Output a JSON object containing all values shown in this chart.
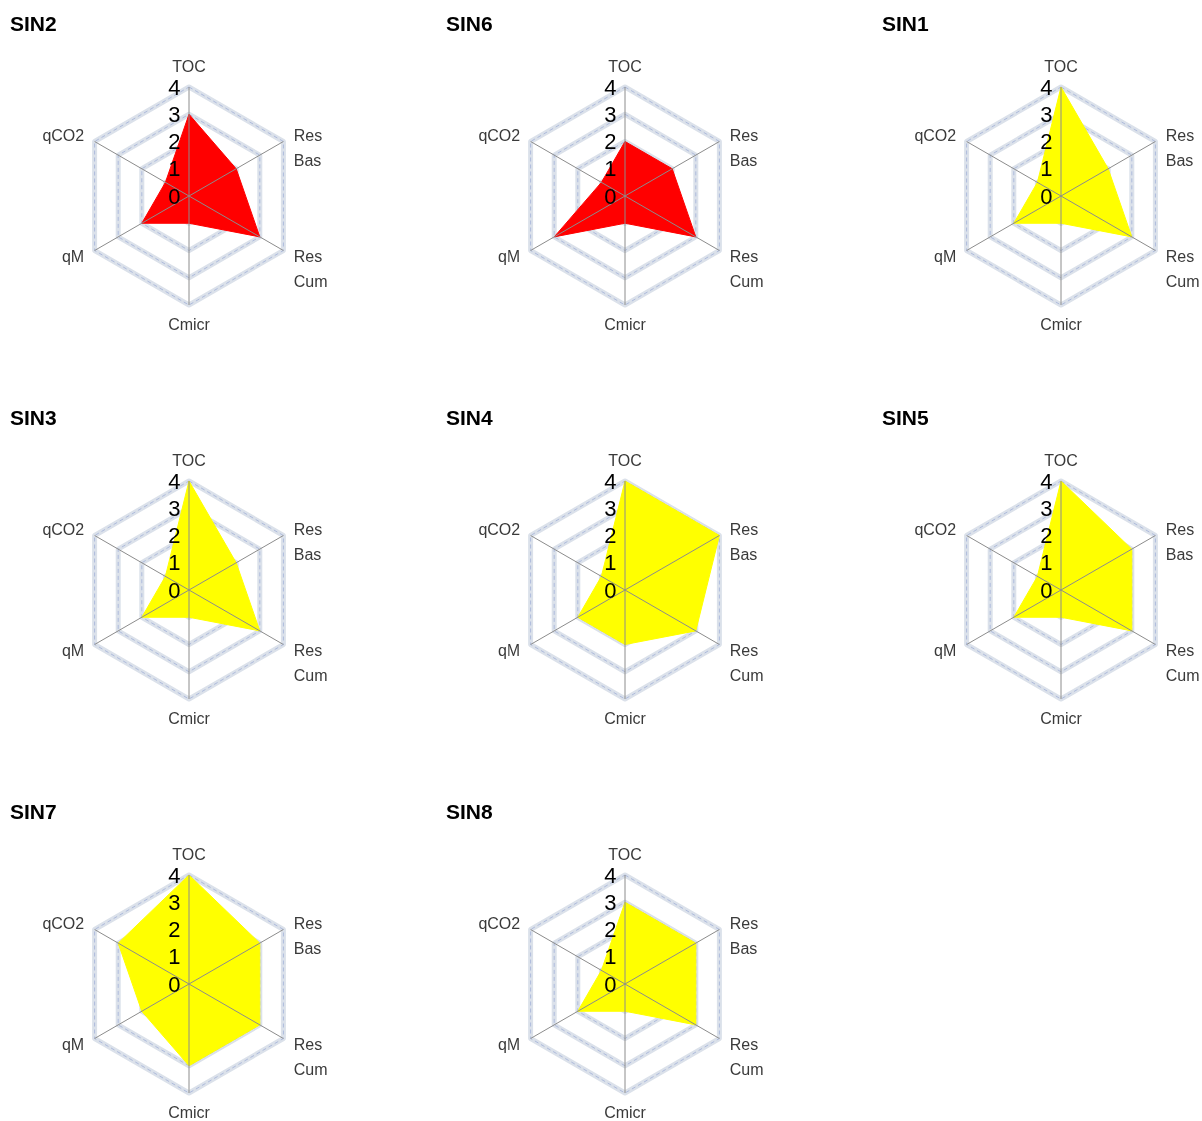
{
  "chart_data": [
    {
      "type": "radar",
      "title": "SIN2",
      "categories": [
        "TOC",
        "Res Bas",
        "Res Cum",
        "Cmicr",
        "qM",
        "qCO2"
      ],
      "series": [
        {
          "color": "#ff0000",
          "values": [
            3,
            2,
            3,
            1,
            2,
            1
          ]
        }
      ],
      "ylim": [
        0,
        4
      ],
      "yticks": [
        0,
        1,
        2,
        3,
        4
      ],
      "grid": true
    },
    {
      "type": "radar",
      "title": "SIN6",
      "categories": [
        "TOC",
        "Res Bas",
        "Res Cum",
        "Cmicr",
        "qM",
        "qCO2"
      ],
      "series": [
        {
          "color": "#ff0000",
          "values": [
            2,
            2,
            3,
            1,
            3,
            1
          ]
        }
      ],
      "ylim": [
        0,
        4
      ],
      "yticks": [
        0,
        1,
        2,
        3,
        4
      ],
      "grid": true
    },
    {
      "type": "radar",
      "title": "SIN1",
      "categories": [
        "TOC",
        "Res Bas",
        "Res Cum",
        "Cmicr",
        "qM",
        "qCO2"
      ],
      "series": [
        {
          "color": "#ffff00",
          "values": [
            4,
            2,
            3,
            1,
            2,
            1
          ]
        }
      ],
      "ylim": [
        0,
        4
      ],
      "yticks": [
        0,
        1,
        2,
        3,
        4
      ],
      "grid": true
    },
    {
      "type": "radar",
      "title": "SIN3",
      "categories": [
        "TOC",
        "Res Bas",
        "Res Cum",
        "Cmicr",
        "qM",
        "qCO2"
      ],
      "series": [
        {
          "color": "#ffff00",
          "values": [
            4,
            2,
            3,
            1,
            2,
            1
          ]
        }
      ],
      "ylim": [
        0,
        4
      ],
      "yticks": [
        0,
        1,
        2,
        3,
        4
      ],
      "grid": true
    },
    {
      "type": "radar",
      "title": "SIN4",
      "categories": [
        "TOC",
        "Res Bas",
        "Res Cum",
        "Cmicr",
        "qM",
        "qCO2"
      ],
      "series": [
        {
          "color": "#ffff00",
          "values": [
            4,
            4,
            3,
            2,
            2,
            1
          ]
        }
      ],
      "ylim": [
        0,
        4
      ],
      "yticks": [
        0,
        1,
        2,
        3,
        4
      ],
      "grid": true
    },
    {
      "type": "radar",
      "title": "SIN5",
      "categories": [
        "TOC",
        "Res Bas",
        "Res Cum",
        "Cmicr",
        "qM",
        "qCO2"
      ],
      "series": [
        {
          "color": "#ffff00",
          "values": [
            4,
            3,
            3,
            1,
            2,
            1
          ]
        }
      ],
      "ylim": [
        0,
        4
      ],
      "yticks": [
        0,
        1,
        2,
        3,
        4
      ],
      "grid": true
    },
    {
      "type": "radar",
      "title": "SIN7",
      "categories": [
        "TOC",
        "Res Bas",
        "Res Cum",
        "Cmicr",
        "qM",
        "qCO2"
      ],
      "series": [
        {
          "color": "#ffff00",
          "values": [
            4,
            3,
            3,
            3,
            2,
            3
          ]
        }
      ],
      "ylim": [
        0,
        4
      ],
      "yticks": [
        0,
        1,
        2,
        3,
        4
      ],
      "grid": true
    },
    {
      "type": "radar",
      "title": "SIN8",
      "categories": [
        "TOC",
        "Res Bas",
        "Res Cum",
        "Cmicr",
        "qM",
        "qCO2"
      ],
      "series": [
        {
          "color": "#ffff00",
          "values": [
            3,
            3,
            3,
            1,
            2,
            1
          ]
        }
      ],
      "ylim": [
        0,
        4
      ],
      "yticks": [
        0,
        1,
        2,
        3,
        4
      ],
      "grid": true
    }
  ]
}
